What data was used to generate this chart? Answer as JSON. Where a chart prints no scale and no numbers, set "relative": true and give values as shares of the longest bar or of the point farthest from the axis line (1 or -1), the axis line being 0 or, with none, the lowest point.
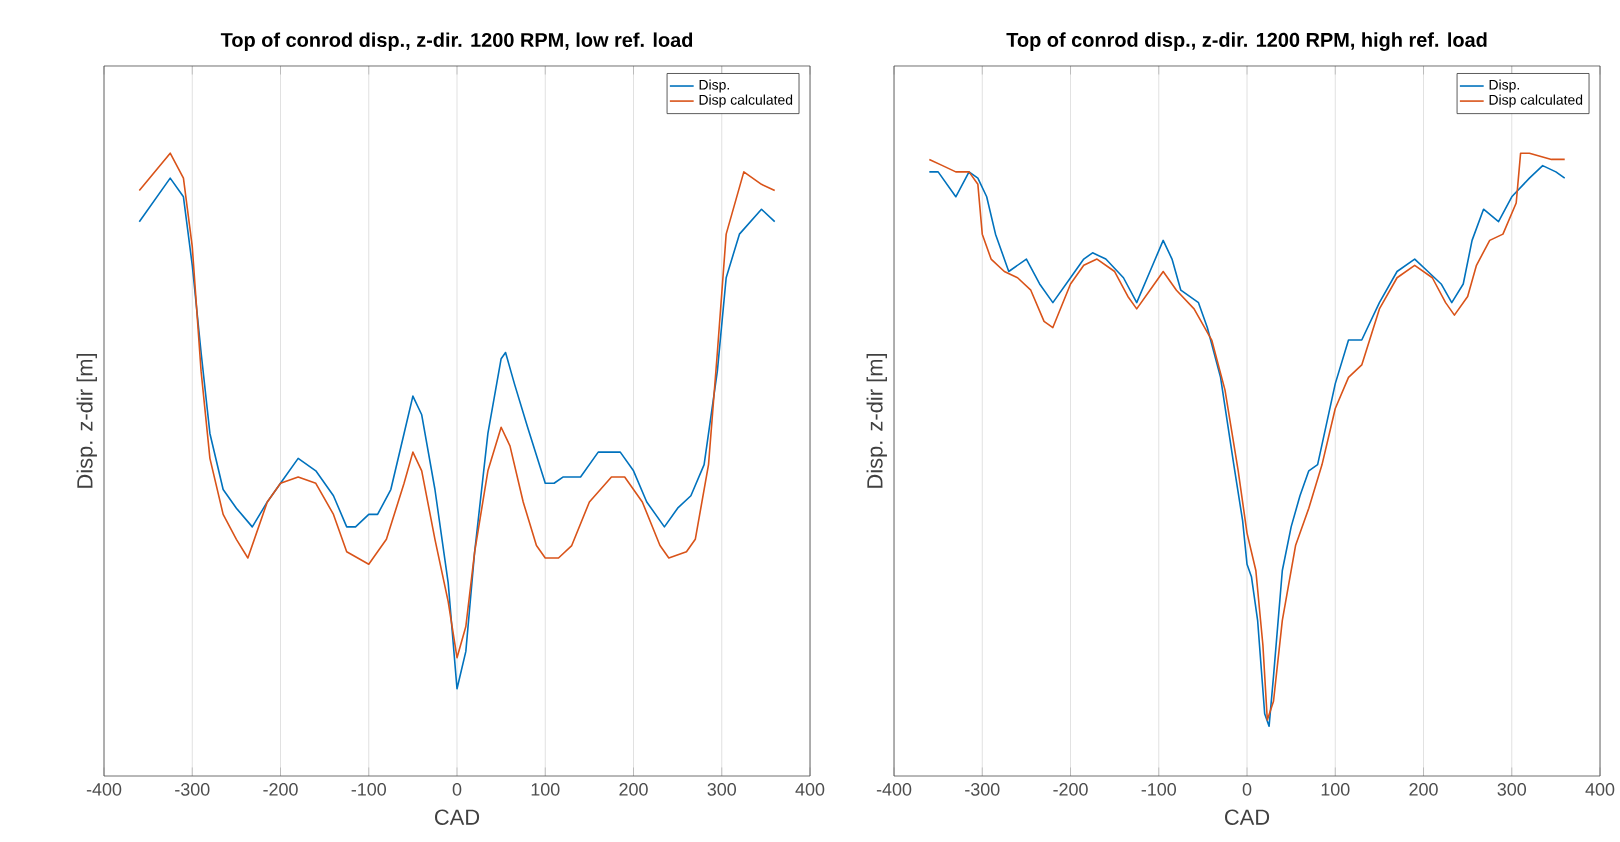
{
  "chart_data": [
    {
      "type": "line",
      "title": "Top of conrod disp., z-dir. 1200 RPM,  low ref. load",
      "xlabel": "CAD",
      "ylabel": "Disp. z-dir [m]",
      "relative": true,
      "xlim": [
        -400,
        400
      ],
      "xticks": [
        -400,
        -300,
        -200,
        -100,
        0,
        100,
        200,
        300,
        400
      ],
      "grid": "x",
      "legend": "top right",
      "line_style": "solid",
      "marker": "none",
      "series": [
        {
          "name": "Disp.",
          "color": "#0072bd",
          "x": [
            -360,
            -325,
            -310,
            -300,
            -290,
            -280,
            -265,
            -250,
            -232,
            -215,
            -200,
            -180,
            -160,
            -140,
            -125,
            -115,
            -100,
            -90,
            -75,
            -60,
            -50,
            -40,
            -25,
            -10,
            0,
            10,
            20,
            35,
            50,
            55,
            65,
            80,
            100,
            110,
            120,
            140,
            160,
            175,
            185,
            200,
            215,
            235,
            250,
            265,
            280,
            295,
            305,
            320,
            345,
            360
          ],
          "values": [
            0.89,
            0.96,
            0.93,
            0.82,
            0.68,
            0.55,
            0.46,
            0.43,
            0.4,
            0.44,
            0.47,
            0.51,
            0.49,
            0.45,
            0.4,
            0.4,
            0.42,
            0.42,
            0.46,
            0.55,
            0.61,
            0.58,
            0.46,
            0.31,
            0.14,
            0.2,
            0.36,
            0.55,
            0.67,
            0.68,
            0.63,
            0.56,
            0.47,
            0.47,
            0.48,
            0.48,
            0.52,
            0.52,
            0.52,
            0.49,
            0.44,
            0.4,
            0.43,
            0.45,
            0.5,
            0.65,
            0.8,
            0.87,
            0.91,
            0.89
          ]
        },
        {
          "name": "Disp calculated",
          "color": "#d95319",
          "x": [
            -360,
            -325,
            -310,
            -300,
            -290,
            -280,
            -265,
            -250,
            -237,
            -215,
            -200,
            -180,
            -160,
            -140,
            -125,
            -100,
            -80,
            -60,
            -50,
            -40,
            -25,
            -10,
            0,
            10,
            20,
            35,
            50,
            60,
            75,
            90,
            100,
            115,
            130,
            150,
            175,
            190,
            210,
            230,
            240,
            260,
            270,
            285,
            295,
            305,
            325,
            345,
            360
          ],
          "values": [
            0.94,
            1.0,
            0.96,
            0.85,
            0.65,
            0.51,
            0.42,
            0.38,
            0.35,
            0.44,
            0.47,
            0.48,
            0.47,
            0.42,
            0.36,
            0.34,
            0.38,
            0.47,
            0.52,
            0.49,
            0.38,
            0.28,
            0.19,
            0.24,
            0.36,
            0.49,
            0.56,
            0.53,
            0.44,
            0.37,
            0.35,
            0.35,
            0.37,
            0.44,
            0.48,
            0.48,
            0.44,
            0.37,
            0.35,
            0.36,
            0.38,
            0.5,
            0.68,
            0.87,
            0.97,
            0.95,
            0.94
          ]
        }
      ]
    },
    {
      "type": "line",
      "title": "Top of conrod disp., z-dir. 1200 RPM, high ref. load",
      "xlabel": "CAD",
      "ylabel": "Disp. z-dir [m]",
      "relative": true,
      "xlim": [
        -400,
        400
      ],
      "xticks": [
        -400,
        -300,
        -200,
        -100,
        0,
        100,
        200,
        300,
        400
      ],
      "grid": "x",
      "legend": "top right",
      "line_style": "solid",
      "marker": "none",
      "series": [
        {
          "name": "Disp.",
          "color": "#0072bd",
          "x": [
            -360,
            -350,
            -330,
            -315,
            -305,
            -295,
            -285,
            -270,
            -250,
            -235,
            -220,
            -200,
            -185,
            -175,
            -160,
            -140,
            -125,
            -110,
            -95,
            -85,
            -75,
            -65,
            -55,
            -45,
            -30,
            -15,
            -5,
            0,
            5,
            12,
            20,
            25,
            30,
            40,
            50,
            60,
            70,
            80,
            100,
            115,
            130,
            150,
            170,
            190,
            205,
            220,
            232,
            245,
            255,
            268,
            285,
            300,
            320,
            335,
            350,
            360
          ],
          "values": [
            0.97,
            0.97,
            0.93,
            0.97,
            0.96,
            0.93,
            0.87,
            0.81,
            0.83,
            0.79,
            0.76,
            0.8,
            0.83,
            0.84,
            0.83,
            0.8,
            0.76,
            0.81,
            0.86,
            0.83,
            0.78,
            0.77,
            0.76,
            0.72,
            0.64,
            0.5,
            0.41,
            0.34,
            0.32,
            0.25,
            0.1,
            0.08,
            0.16,
            0.33,
            0.4,
            0.45,
            0.49,
            0.5,
            0.63,
            0.7,
            0.7,
            0.76,
            0.81,
            0.83,
            0.81,
            0.79,
            0.76,
            0.79,
            0.86,
            0.91,
            0.89,
            0.93,
            0.96,
            0.98,
            0.97,
            0.96
          ]
        },
        {
          "name": "Disp calculated",
          "color": "#d95319",
          "x": [
            -360,
            -345,
            -330,
            -315,
            -305,
            -300,
            -290,
            -275,
            -260,
            -245,
            -230,
            -220,
            -200,
            -185,
            -170,
            -150,
            -135,
            -125,
            -110,
            -95,
            -80,
            -60,
            -40,
            -25,
            -10,
            0,
            10,
            18,
            23,
            30,
            40,
            55,
            70,
            85,
            100,
            115,
            130,
            150,
            170,
            190,
            210,
            225,
            235,
            250,
            260,
            275,
            290,
            305,
            310,
            320,
            345,
            360
          ],
          "values": [
            0.99,
            0.98,
            0.97,
            0.97,
            0.95,
            0.87,
            0.83,
            0.81,
            0.8,
            0.78,
            0.73,
            0.72,
            0.79,
            0.82,
            0.83,
            0.81,
            0.77,
            0.75,
            0.78,
            0.81,
            0.78,
            0.75,
            0.7,
            0.62,
            0.49,
            0.39,
            0.33,
            0.21,
            0.09,
            0.12,
            0.25,
            0.37,
            0.43,
            0.5,
            0.59,
            0.64,
            0.66,
            0.75,
            0.8,
            0.82,
            0.8,
            0.76,
            0.74,
            0.77,
            0.82,
            0.86,
            0.87,
            0.92,
            1.0,
            1.0,
            0.99,
            0.99
          ]
        }
      ]
    }
  ]
}
